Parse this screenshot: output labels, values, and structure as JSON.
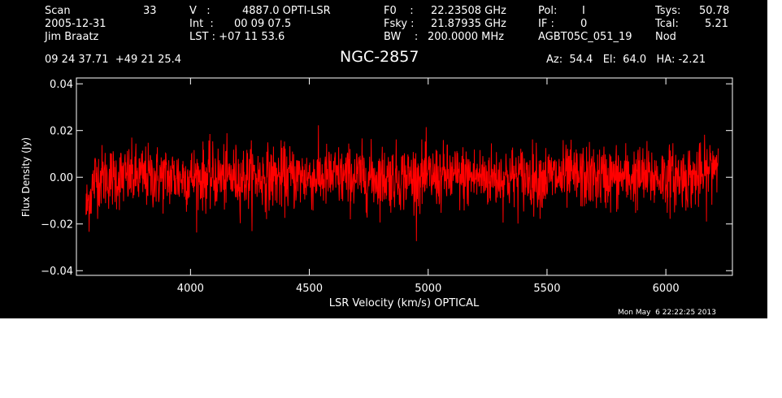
{
  "header": {
    "scan_label": "Scan",
    "scan_number": "33",
    "date": "2005-12-31",
    "observer": "Jim Braatz",
    "v_label": "V   :",
    "v_value": "4887.0 OPTI-LSR",
    "int_label": "Int  :",
    "int_value": "00 09 07.5",
    "lst_label": "LST : +07 11 53.6",
    "f0_label": "F0    :",
    "f0_value": "22.23508 GHz",
    "fsky_label": "Fsky :",
    "fsky_value": "21.87935 GHz",
    "bw_label": "BW    :",
    "bw_value": "200.0000 MHz",
    "pol_label": "Pol:",
    "pol_value": "I",
    "if_label": "IF :",
    "if_value": "0",
    "project": "AGBT05C_051_19",
    "tsys_label": "Tsys:",
    "tsys_value": "50.78",
    "tcal_label": "Tcal:",
    "tcal_value": "5.21",
    "mode": "Nod",
    "coords": "09 24 37.71  +49 21 25.4",
    "object": "NGC-2857",
    "az_el_ha": "Az:  54.4   El:  64.0   HA: -2.21"
  },
  "timestamp": "Mon May  6 22:22:25 2013",
  "colors": {
    "background": "#000000",
    "axes": "#ffffff",
    "trace": "#ff0000"
  },
  "chart_data": {
    "type": "line",
    "xlabel": "LSR Velocity (km/s) OPTICAL",
    "ylabel": "Flux Density (Jy)",
    "xlim": [
      3520,
      6280
    ],
    "ylim": [
      -0.042,
      0.0425
    ],
    "xticks": [
      4000,
      4500,
      5000,
      5500,
      6000
    ],
    "yticks": [
      -0.04,
      -0.02,
      0.0,
      0.02,
      0.04
    ],
    "xtick_labels": [
      "4000",
      "4500",
      "5000",
      "5500",
      "6000"
    ],
    "ytick_labels": [
      "−0.04",
      "−0.02",
      "0.00",
      "0.02",
      "0.04"
    ],
    "grid": false,
    "series": [
      {
        "x_start": 3560,
        "x_end": 6220,
        "n_points": 2000,
        "noise_rms": 0.0068,
        "baseline": 0.0,
        "shape_note": "noise spectrum; low-velocity edge dips to about -0.03 near 3560 km/s; high-velocity edge rises to about +0.02 near 6220 km/s"
      }
    ]
  }
}
